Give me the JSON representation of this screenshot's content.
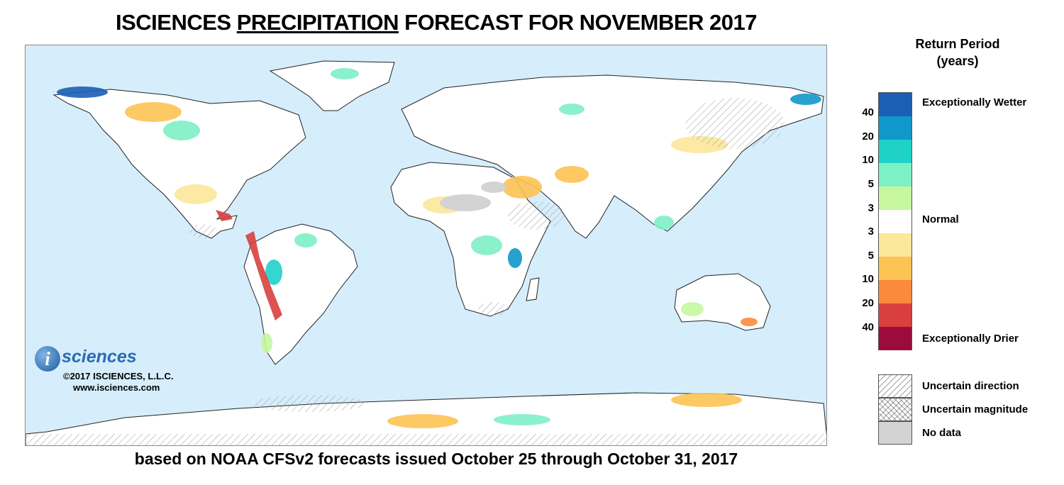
{
  "title": {
    "prefix": "ISCIENCES ",
    "emph": "PRECIPITATION",
    "suffix": " FORECAST FOR NOVEMBER 2017"
  },
  "subtitle": "based on NOAA CFSv2 forecasts issued October 25 through October 31, 2017",
  "logo": {
    "mark": "i",
    "word": "sciences",
    "copyright": "©2017 ISCIENCES, L.L.C.",
    "website": "www.isciences.com"
  },
  "legend": {
    "title_line1": "Return Period",
    "title_line2": "(years)",
    "swatches": [
      "#1a5fb4",
      "#0f98c9",
      "#1fd2c8",
      "#7ef0c6",
      "#c6f7a0",
      "#ffffff",
      "#fce79a",
      "#fdc354",
      "#fb8a3c",
      "#d93f3f",
      "#9b0b3b"
    ],
    "ticks": [
      "40",
      "20",
      "10",
      "5",
      "3",
      "3",
      "5",
      "10",
      "20",
      "40"
    ],
    "label_wetter": "Exceptionally Wetter",
    "label_normal": "Normal",
    "label_drier": "Exceptionally Drier",
    "pattern_direction": "Uncertain direction",
    "pattern_magnitude": "Uncertain magnitude",
    "pattern_nodata": "No data"
  },
  "colors": {
    "ocean": "#d6eefb",
    "land": "#ffffff",
    "nodata": "#d3d3d3"
  }
}
